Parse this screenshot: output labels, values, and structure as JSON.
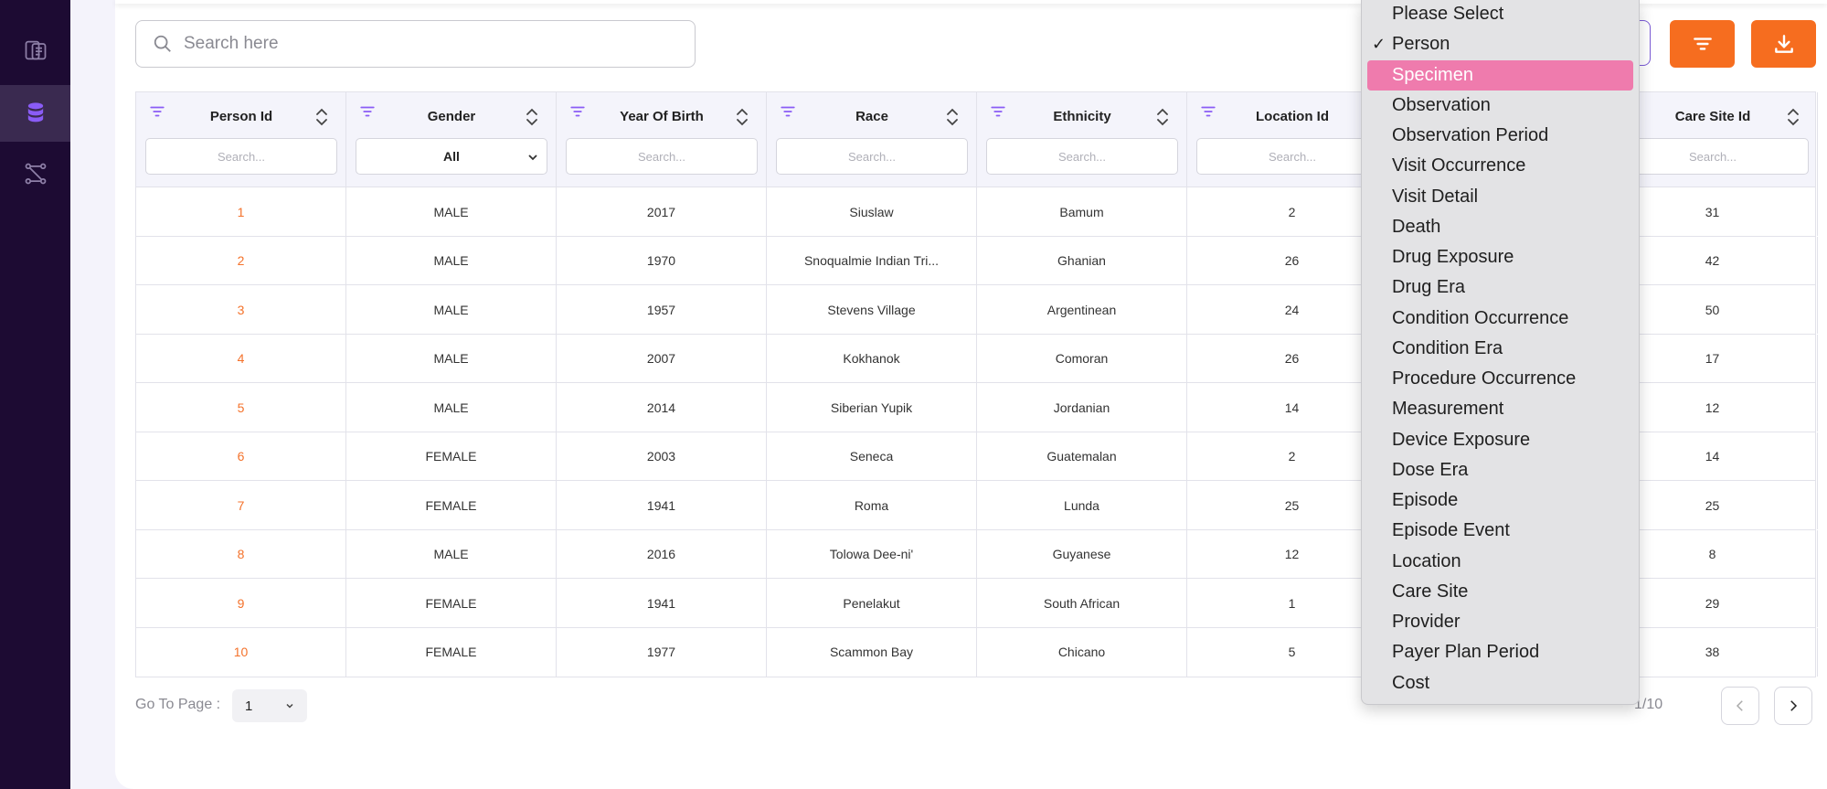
{
  "search": {
    "placeholder": "Search here"
  },
  "columns": [
    {
      "label": "Person Id",
      "filter": "Search..."
    },
    {
      "label": "Gender",
      "filter": "All"
    },
    {
      "label": "Year Of Birth",
      "filter": "Search..."
    },
    {
      "label": "Race",
      "filter": "Search..."
    },
    {
      "label": "Ethnicity",
      "filter": "Search..."
    },
    {
      "label": "Location Id",
      "filter": "Search..."
    },
    {
      "label": "Care Site Id",
      "filter": "Search..."
    }
  ],
  "rows": [
    {
      "person_id": "1",
      "gender": "MALE",
      "year": "2017",
      "race": "Siuslaw",
      "ethnicity": "Bamum",
      "location_id": "2",
      "care_site_id": "31"
    },
    {
      "person_id": "2",
      "gender": "MALE",
      "year": "1970",
      "race": "Snoqualmie Indian Tri...",
      "ethnicity": "Ghanian",
      "location_id": "26",
      "care_site_id": "42"
    },
    {
      "person_id": "3",
      "gender": "MALE",
      "year": "1957",
      "race": "Stevens Village",
      "ethnicity": "Argentinean",
      "location_id": "24",
      "care_site_id": "50"
    },
    {
      "person_id": "4",
      "gender": "MALE",
      "year": "2007",
      "race": "Kokhanok",
      "ethnicity": "Comoran",
      "location_id": "26",
      "care_site_id": "17"
    },
    {
      "person_id": "5",
      "gender": "MALE",
      "year": "2014",
      "race": "Siberian Yupik",
      "ethnicity": "Jordanian",
      "location_id": "14",
      "care_site_id": "12"
    },
    {
      "person_id": "6",
      "gender": "FEMALE",
      "year": "2003",
      "race": "Seneca",
      "ethnicity": "Guatemalan",
      "location_id": "2",
      "care_site_id": "14"
    },
    {
      "person_id": "7",
      "gender": "FEMALE",
      "year": "1941",
      "race": "Roma",
      "ethnicity": "Lunda",
      "location_id": "25",
      "care_site_id": "25"
    },
    {
      "person_id": "8",
      "gender": "MALE",
      "year": "2016",
      "race": "Tolowa Dee-ni'",
      "ethnicity": "Guyanese",
      "location_id": "12",
      "care_site_id": "8"
    },
    {
      "person_id": "9",
      "gender": "FEMALE",
      "year": "1941",
      "race": "Penelakut",
      "ethnicity": "South African",
      "location_id": "1",
      "care_site_id": "29"
    },
    {
      "person_id": "10",
      "gender": "FEMALE",
      "year": "1977",
      "race": "Scammon Bay",
      "ethnicity": "Chicano",
      "location_id": "5",
      "care_site_id": "38"
    }
  ],
  "pagination": {
    "label": "Go To Page :",
    "page": "1",
    "count": "1/10"
  },
  "dropdown": {
    "selected": "Person",
    "highlighted": "Specimen",
    "check": "✓",
    "options": [
      "Please Select",
      "Person",
      "Specimen",
      "Observation",
      "Observation Period",
      "Visit Occurrence",
      "Visit Detail",
      "Death",
      "Drug Exposure",
      "Drug Era",
      "Condition Occurrence",
      "Condition Era",
      "Procedure Occurrence",
      "Measurement",
      "Device Exposure",
      "Dose Era",
      "Episode",
      "Episode Event",
      "Location",
      "Care Site",
      "Provider",
      "Payer Plan Period",
      "Cost"
    ]
  },
  "colors": {
    "accent": "#f66d1f",
    "sidebar": "#1d0b33",
    "highlight": "#ef7bad",
    "link": "#f4722b"
  }
}
